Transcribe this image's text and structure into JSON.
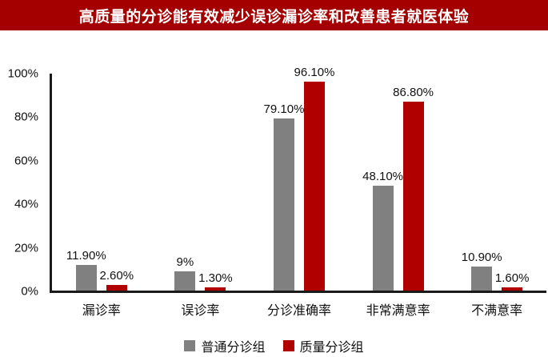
{
  "title": "高质量的分诊能有效减少误诊漏诊率和改善患者就医体验",
  "colors": {
    "title_bg": "#A40000",
    "title_text": "#FFFFFF",
    "bar_gray": "#808080",
    "bar_red": "#B00000",
    "axis": "#1A1A1A",
    "label_text": "#111111"
  },
  "chart_data": {
    "type": "bar",
    "categories": [
      "漏诊率",
      "误诊率",
      "分诊准确率",
      "非常满意率",
      "不满意率"
    ],
    "series": [
      {
        "name": "普通分诊组",
        "color_key": "bar_gray",
        "values": [
          11.9,
          9,
          79.1,
          48.1,
          10.9
        ],
        "labels": [
          "11.90%",
          "9%",
          "79.10%",
          "48.10%",
          "10.90%"
        ]
      },
      {
        "name": "质量分诊组",
        "color_key": "bar_red",
        "values": [
          2.6,
          1.3,
          96.1,
          86.8,
          1.6
        ],
        "labels": [
          "2.60%",
          "1.30%",
          "96.10%",
          "86.80%",
          "1.60%"
        ]
      }
    ],
    "yticks": [
      "100%",
      "80%",
      "60%",
      "40%",
      "20%",
      "0%"
    ],
    "ylim": [
      0,
      100
    ],
    "grid": false,
    "legend_position": "bottom"
  }
}
